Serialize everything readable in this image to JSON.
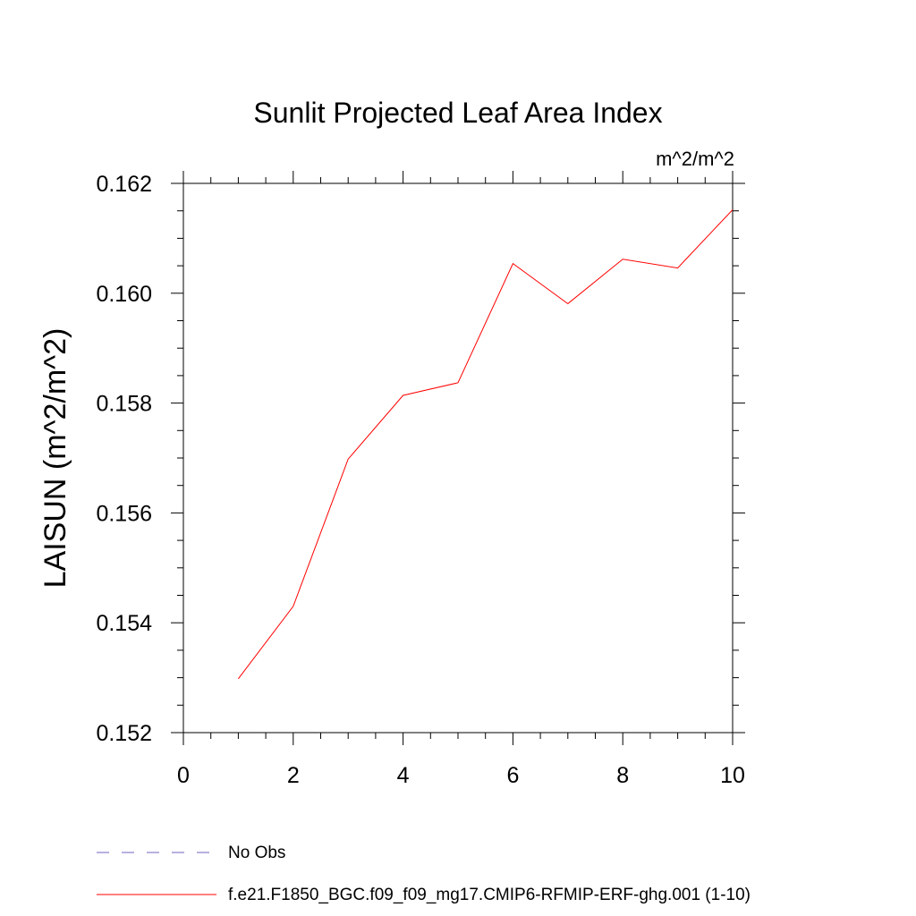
{
  "chart_data": {
    "type": "line",
    "title": "Sunlit Projected Leaf Area Index",
    "units_label": "m^2/m^2",
    "xlabel": "",
    "ylabel": "LAISUN  (m^2/m^2)",
    "xlim": [
      0,
      10
    ],
    "ylim": [
      0.152,
      0.162
    ],
    "x_ticks": [
      0,
      2,
      4,
      6,
      8,
      10
    ],
    "x_tick_labels": [
      "0",
      "2",
      "4",
      "6",
      "8",
      "10"
    ],
    "y_ticks": [
      0.152,
      0.154,
      0.156,
      0.158,
      0.16,
      0.162
    ],
    "y_tick_labels": [
      "0.152",
      "0.154",
      "0.156",
      "0.158",
      "0.160",
      "0.162"
    ],
    "grid": false,
    "series": [
      {
        "name": "f.e21.F1850_BGC.f09_f09_mg17.CMIP6-RFMIP-ERF-ghg.001 (1-10)",
        "color": "#ff0000",
        "style": "solid",
        "x": [
          1,
          2,
          3,
          4,
          5,
          6,
          7,
          8,
          9,
          10
        ],
        "values": [
          0.15298,
          0.1543,
          0.15698,
          0.15814,
          0.15837,
          0.16054,
          0.15981,
          0.16062,
          0.16046,
          0.16152
        ]
      }
    ],
    "legend": [
      {
        "label": "No Obs",
        "color": "#7060c0",
        "style": "dashed"
      },
      {
        "label": "f.e21.F1850_BGC.f09_f09_mg17.CMIP6-RFMIP-ERF-ghg.001 (1-10)",
        "color": "#ff0000",
        "style": "solid"
      }
    ],
    "legend_position": "bottom-left"
  }
}
